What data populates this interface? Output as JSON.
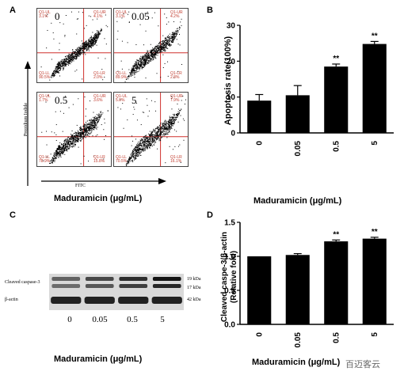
{
  "panels": {
    "A": {
      "letter": "A",
      "y_axis_label": "Propidium Iodide",
      "x_axis_label": "FITC",
      "caption": "Maduramicin (μg/mL)",
      "plots": [
        {
          "dose": "0",
          "ul_name": "Q1-UL",
          "ul_val": "3.1%",
          "ur_name": "Q1-UR",
          "ur_val": "4.1%",
          "ll_name": "Q1-LL",
          "ll_val": "90.5%",
          "lr_name": "Q1-LR",
          "lr_val": "2.0%"
        },
        {
          "dose": "0.05",
          "ul_name": "Q1-UL",
          "ul_val": "3.1%",
          "ur_name": "Q1-UR",
          "ur_val": "4.2%",
          "ll_name": "Q1-LL",
          "ll_val": "89.9%",
          "lr_name": "Q1-LR",
          "lr_val": "2.8%"
        },
        {
          "dose": "0.5",
          "ul_name": "Q1-UL",
          "ul_val": "1.7%",
          "ur_name": "Q1-UR",
          "ur_val": "3.6%",
          "ll_name": "Q1-LL",
          "ll_val": "78.9%",
          "lr_name": "Q1-LR",
          "lr_val": "15.8%"
        },
        {
          "dose": "5",
          "ul_name": "Q1-UL",
          "ul_val": "5.0%",
          "ur_name": "Q1-UR",
          "ur_val": "7.9%",
          "ll_name": "Q1-LL",
          "ll_val": "70.5%",
          "lr_name": "Q1-LR",
          "lr_val": "16.1%"
        }
      ]
    },
    "C": {
      "letter": "C",
      "rows": [
        {
          "label": "Cleaved caspase-3",
          "kda": [
            "19 kDa",
            "17 kDa"
          ]
        },
        {
          "label": "β-actin",
          "kda": [
            "42 kDa"
          ]
        }
      ],
      "doses": [
        "0",
        "0.05",
        "0.5",
        "5"
      ],
      "caption": "Maduramicin (μg/mL)"
    }
  },
  "watermark": "百迈客云",
  "chart_data": [
    {
      "panel": "B",
      "type": "bar",
      "letter": "B",
      "categories": [
        "0",
        "0.05",
        "0.5",
        "5"
      ],
      "values": [
        9,
        10.5,
        18.5,
        24.8
      ],
      "errors": [
        1.7,
        2.7,
        0.7,
        0.7
      ],
      "significance": [
        "",
        "",
        "**",
        "**"
      ],
      "ylabel": "Apoptosis rate(100%)",
      "xlabel": "Maduramicin (μg/mL)",
      "ylim": [
        0,
        30
      ],
      "yticks": [
        "0",
        "10",
        "20",
        "30"
      ],
      "bar_color": "#000000"
    },
    {
      "panel": "D",
      "type": "bar",
      "letter": "D",
      "categories": [
        "0",
        "0.05",
        "0.5",
        "5"
      ],
      "values": [
        1.0,
        1.02,
        1.22,
        1.26
      ],
      "errors": [
        0,
        0.02,
        0.02,
        0.02
      ],
      "significance": [
        "",
        "",
        "**",
        "**"
      ],
      "ylabel": "Cleaved caspe-3/β-actin",
      "ylabel2": "(Relative fold)",
      "xlabel": "Maduramicin (μg/mL)",
      "ylim": [
        0,
        1.5
      ],
      "yticks": [
        "0.0",
        "0.5",
        "1.0",
        "1.5"
      ],
      "bar_color": "#000000"
    }
  ]
}
